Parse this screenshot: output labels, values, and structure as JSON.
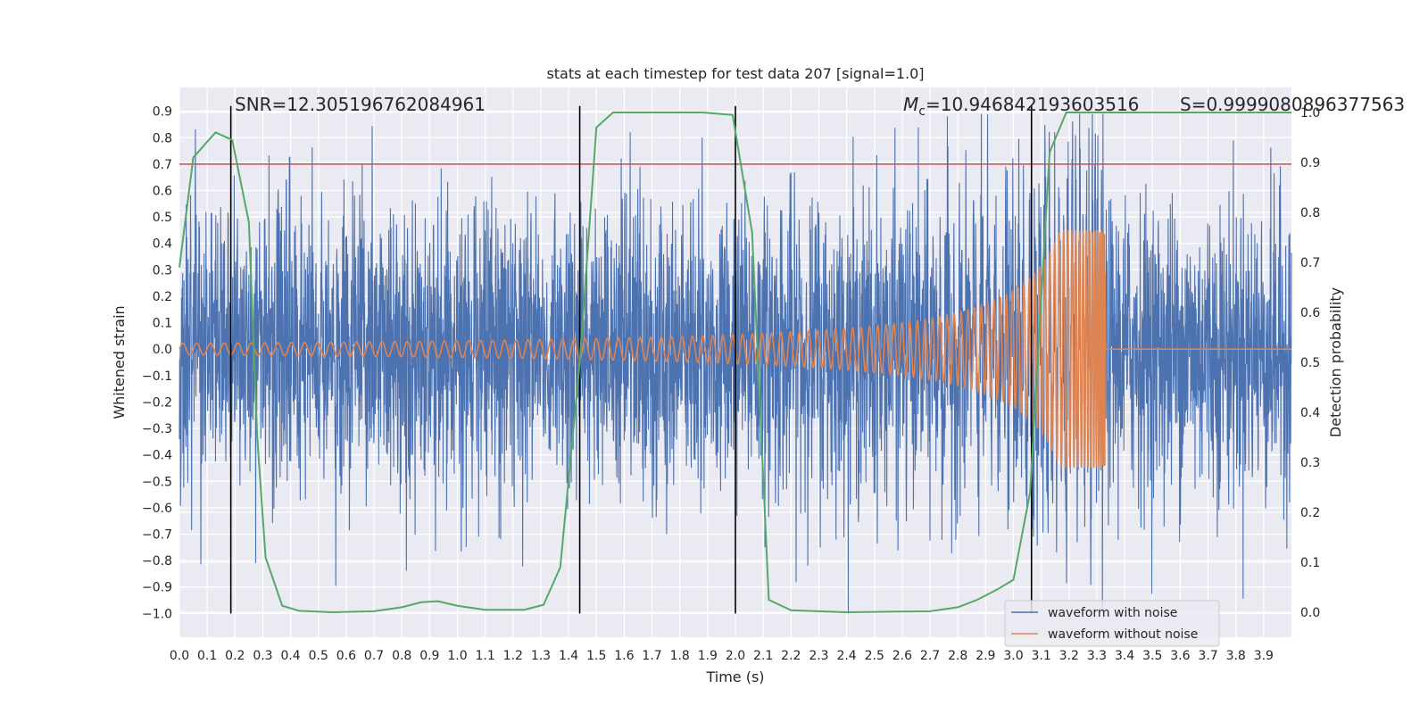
{
  "chart_data": {
    "type": "line",
    "title": "stats at each timestep for test data 207 [signal=1.0]",
    "xlabel": "Time (s)",
    "ylabel": "Whitened strain",
    "ylabel_right": "Detection probability",
    "xlim": [
      0.0,
      4.0
    ],
    "ylim": [
      -1.09,
      0.99
    ],
    "ylim_right": [
      -0.05,
      1.05
    ],
    "x_ticks": [
      "0.0",
      "0.1",
      "0.2",
      "0.3",
      "0.4",
      "0.5",
      "0.6",
      "0.7",
      "0.8",
      "0.9",
      "1.0",
      "1.1",
      "1.2",
      "1.3",
      "1.4",
      "1.5",
      "1.6",
      "1.7",
      "1.8",
      "1.9",
      "2.0",
      "2.1",
      "2.2",
      "2.3",
      "2.4",
      "2.5",
      "2.6",
      "2.7",
      "2.8",
      "2.9",
      "3.0",
      "3.1",
      "3.2",
      "3.3",
      "3.4",
      "3.5",
      "3.6",
      "3.7",
      "3.8",
      "3.9"
    ],
    "y_ticks": [
      "0.9",
      "0.8",
      "0.7",
      "0.6",
      "0.5",
      "0.4",
      "0.3",
      "0.2",
      "0.1",
      "0.0",
      "−0.1",
      "−0.2",
      "−0.3",
      "−0.4",
      "−0.5",
      "−0.6",
      "−0.7",
      "−0.8",
      "−0.9",
      "−1.0"
    ],
    "y_ticks_right": [
      "1.0",
      "0.9",
      "0.8",
      "0.7",
      "0.6",
      "0.5",
      "0.4",
      "0.3",
      "0.2",
      "0.1",
      "0.0"
    ],
    "annotations": {
      "snr": "SNR=12.305196762084961",
      "mc_symbol": "M",
      "mc_subscript": "c",
      "mc_value": "=10.946842193603516",
      "s": "S=0.9999080896377563"
    },
    "threshold": {
      "value": 0.7,
      "color": "#c44e52"
    },
    "vertical_markers": [
      0.185,
      1.44,
      2.0,
      3.065
    ],
    "series": [
      {
        "name": "waveform with noise",
        "color": "#4c72b0",
        "noise_amplitude": 0.45,
        "max": 0.89,
        "min": -1.0
      },
      {
        "name": "waveform without noise",
        "color": "#dd8452",
        "start_amplitude": 0.022,
        "peak_amplitude": 0.45,
        "peak_time": 3.33,
        "start_frequency": 20,
        "peak_frequency": 70
      },
      {
        "name": "detection probability",
        "color": "#55a868",
        "x": [
          0.0,
          0.05,
          0.13,
          0.19,
          0.25,
          0.28,
          0.31,
          0.37,
          0.43,
          0.55,
          0.7,
          0.8,
          0.87,
          0.93,
          1.0,
          1.1,
          1.24,
          1.31,
          1.37,
          1.44,
          1.5,
          1.56,
          1.7,
          1.88,
          1.99,
          2.06,
          2.12,
          2.2,
          2.4,
          2.7,
          2.8,
          2.87,
          2.94,
          3.0,
          3.06,
          3.13,
          3.19,
          3.3,
          3.5,
          4.0
        ],
        "y": [
          0.69,
          0.91,
          0.96,
          0.945,
          0.78,
          0.35,
          0.11,
          0.013,
          0.003,
          0.0,
          0.002,
          0.01,
          0.02,
          0.022,
          0.013,
          0.005,
          0.005,
          0.015,
          0.09,
          0.5,
          0.97,
          1.0,
          1.0,
          1.0,
          0.995,
          0.76,
          0.025,
          0.004,
          0.0,
          0.002,
          0.01,
          0.025,
          0.045,
          0.065,
          0.24,
          0.92,
          1.0,
          1.0,
          1.0,
          1.0
        ]
      }
    ],
    "legend": {
      "location": "lower-right",
      "entries": [
        "waveform with noise",
        "waveform without noise"
      ]
    }
  }
}
